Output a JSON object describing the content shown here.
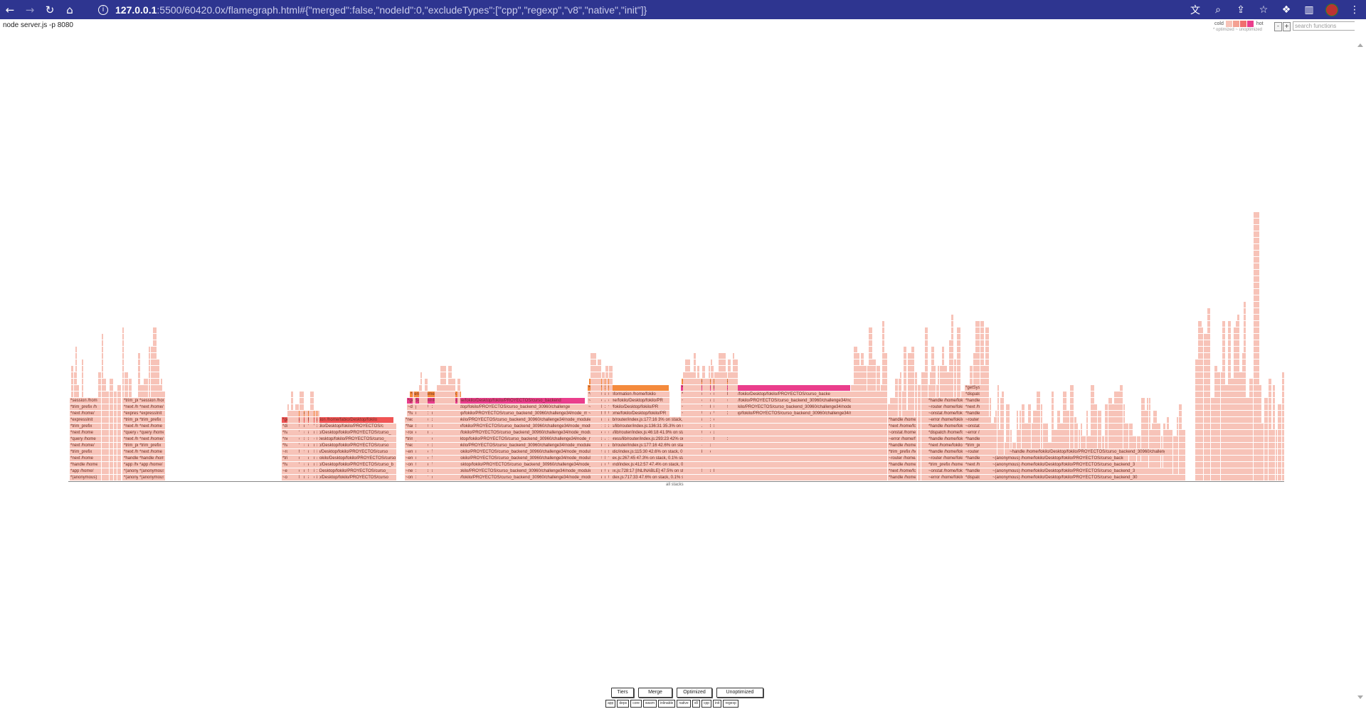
{
  "browser": {
    "back_icon": "back-arrow-icon",
    "forward_icon": "forward-arrow-icon",
    "url_host": "127.0.0.1",
    "url_rest": ":5500/60420.0x/flamegraph.html#{\"merged\":false,\"nodeId\":0,\"excludeTypes\":[\"cpp\",\"regexp\",\"v8\",\"native\",\"init\"]}"
  },
  "page": {
    "process_title": "node server.js -p 8080",
    "legend": {
      "cold": "cold",
      "hot": "hot",
      "sub": "* optimized ~ unoptimized",
      "colors": [
        "#f7c3b8",
        "#f4a092",
        "#f06e6e",
        "#ea3e8c"
      ]
    },
    "zoom_out": "-",
    "zoom_in": "+",
    "search_placeholder": "search functions",
    "root_label": "all stacks"
  },
  "flame_labels": [
    "*session /home/",
    "*trim_prefix /h",
    "*next /home/",
    "*expressInit",
    "*trim_prefix",
    "*next /home",
    "*query /home",
    "*next /home/",
    "*trim_prefix",
    "*next /home",
    "*handle /home",
    "*app /home/",
    "*(anonymous) /h",
    "*(anonymous) /home",
    "*send /home/",
    "*getSystemInformation /home/fabio/Desktop/fokilo",
    "*dispatch /home/fokilo/Desktop/fokilo/PROYECTOS/c",
    "*handle /home/fokilo/Desktop/fokilo/PROYECTOS/curso_",
    "*next /home/fokilo/Desktop/fokilo/PROYECTOS/curso_",
    "*handle /home/fokilo/Desktop/fokilo/PROYECTOS/curso",
    "~router /home/fokilo/Desktop/fokilo/PROYECTOS/curso",
    "*trim_prefix /home/fokilo/Desktop/fokilo/PROYECTOS/curso",
    "*handle /home/fokilo/Desktop/fokilo/PROYECTOS/curso_b",
    "~error /home/fokilo/Desktop/fokilo/PROYECTOS/curso_",
    "~onstat /home/fokilo/Desktop/fokilo/PROYECTOS/curso",
    "*send /home/fokilo/Desk",
    "*getSystemInformation /home/fokilo/Desktop/fokilo/PROYECTOS/curso_backend",
    "~dispatch /home/fokilo/Desktop/fokilo/PROYECTOS/curso_backend_30960/challenge",
    "*handle /home/fokilo/Desktop/fokilo/PROYECTOS/curso_backend_30960/challenge34/node_modules/express/lib/router/route.js",
    "*next /home/fokilo/Desktop/fokilo/PROYECTOS/curso_backend_30960/challenge34/node_modules/express/lib/router/index.js:177:16 3% on stack, 0.66% stack top",
    "*handle /home/fokilo/Desktop/fokilo/PROYECTOS/curso_backend_30960/challenge34/node_modules/express/lib/router/index.js:136:31 35.3% on stack, 0.11% stack top",
    "~router /home/fokilo/Desktop/fokilo/PROYECTOS/curso_backend_30960/challenge34/node_modules/express/lib/router/index.js:46:18 41.9% on stack, 0.07% stack top",
    "*trim_prefix /home/fokilo/Desktop/fokilo/PROYECTOS/curso_backend_30960/challenge34/node_modules/express/lib/router/index.js:293:23 42% on stack, 0.16% stack top",
    "*next /home/fokilo/Desktop/fokilo/PROYECTOS/curso_backend_30960/challenge34/node_modules/express/lib/router/index.js:177:16 42.6% on stack, 3.33% stack top",
    "~error /home/fokilo/Desktop/fokilo/PROYECTOS/curso_backend_30960/challenge34/node_modules/serve-static/index.js:115:30 42.6% on stack, 0.03% stack top",
    "~error /home/fokilo/Desktop/fokilo/PROYECTOS/curso_backend_30960/challenge34/node_modules/send/index.js:267:45 47.3% on stack, 0.1% stack top",
    "~onStatError /home/fokilo/Desktop/fokilo/PROYECTOS/curso_backend_30960/challenge34/node_modules/send/index.js:412:57 47.4% on stack, 0.1% stack top",
    "~next /home/fokilo/Desktop/fokilo/PROYECTOS/curso_backend_30960/challenge34/node_modules/send/index.js:728:17 [INLINABLE] 47.5% on stack, 0.07% stack top",
    "~onstat /home/fokilo/Desktop/fokilo/PROYECTOS/curso_backend_30960/challenge34/node_modules/send/index.js:717:33 47.6% on stack, 0.1% stack top",
    "*send /hom",
    "*getSystemInformation /home/fokilo",
    "~handle /home/fokilo/Desktop/fokilo/PR",
    "~next /home/fokilo/Desktop/fokilo/PR",
    "~dispatch /home/fokilo/Desktop/fokilo/PR",
    "~handle /home/fokilo/Desktop/fokilo/PR",
    "*send /home/fokilo/Desk",
    "*getSystemInformation /home/fokilo/Desktop/fokilo/PROYECTOS/curso_backe",
    "~handle /home/fokilo/Desktop/fokilo/PROYECTOS/curso_backend_30960/challenge34/node_m",
    "~next /home/fokilo/Desktop/fokilo/PROYECTOS/curso_backend_30960/challenge34/node_mo",
    "~dispatch /home/fokilo/Desktop/fokilo/PROYECTOS/curso_backend_30960/challenge34/node_m",
    "~handle /home/fokilo/Desktop/fokilo/PROYECTOS/curso_backend_30960/challenge34/node_m",
    "~(anonymous) /home/fokilo/Desktop/fokilo/PROYECTOS/curso_backe",
    "~(anonymous) /home/fokilo/Desktop/fokilo/PROYECTOS/curso_backend_3",
    "~(anonymous) /home/fokilo/Desktop/fokilo/PROYECTOS/curso_backend_3",
    "~(anonymous) /home/fokilo/Desktop/fokilo/PROYECTOS/curso_backend_30",
    "~(anonymous) /home/fokilo/Desktop/fokilo/PROYECTOS/curso_backend_30960/challeng"
  ],
  "controls": {
    "buttons": [
      "Tiers",
      "Merge",
      "Optimized",
      "Unoptimized"
    ],
    "filters": [
      "app",
      "deps",
      "core",
      "wasm",
      "inlinable",
      "native",
      "v8",
      "cpp",
      "init",
      "regexp"
    ]
  }
}
